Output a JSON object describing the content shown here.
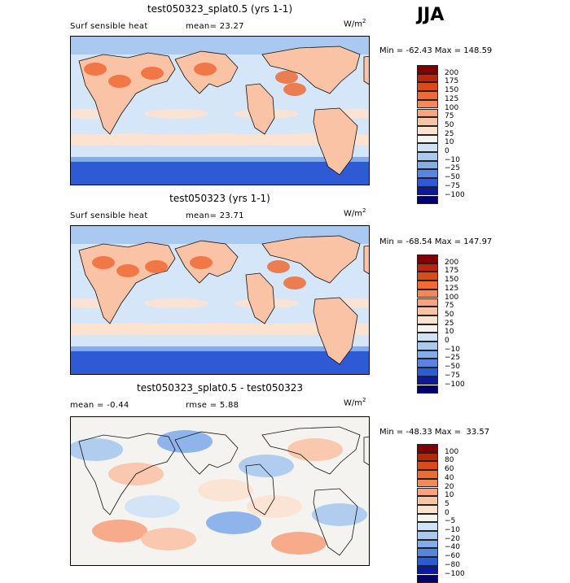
{
  "season": "JJA",
  "panels": [
    {
      "title": "test050323_splat0.5 (yrs 1-1)",
      "left_label": "Surf sensible heat",
      "mid_label": "mean=  23.27",
      "units": "W/m",
      "units_exp": "2",
      "minmax": "Min = -62.43 Max = 148.59",
      "levels": [
        "200",
        "175",
        "150",
        "125",
        "100",
        "75",
        "50",
        "25",
        "10",
        "0",
        "−10",
        "−25",
        "−50",
        "−75",
        "−100"
      ],
      "colors": [
        "#800000",
        "#b8270c",
        "#dc4a1c",
        "#ef6a35",
        "#f6875a",
        "#f7a37e",
        "#fbc3a6",
        "#fde2d0",
        "#f4f3ef",
        "#cfe2f6",
        "#a9c9f0",
        "#84acea",
        "#5a85df",
        "#2f5ad6",
        "#0b1a9a",
        "#000070"
      ]
    },
    {
      "title": "test050323 (yrs 1-1)",
      "left_label": "Surf sensible heat",
      "mid_label": "mean=  23.71",
      "units": "W/m",
      "units_exp": "2",
      "minmax": "Min = -68.54 Max = 147.97",
      "levels": [
        "200",
        "175",
        "150",
        "125",
        "100",
        "75",
        "50",
        "25",
        "10",
        "0",
        "−10",
        "−25",
        "−50",
        "−75",
        "−100"
      ],
      "colors": [
        "#800000",
        "#b8270c",
        "#dc4a1c",
        "#ef6a35",
        "#f6875a",
        "#f7a37e",
        "#fbc3a6",
        "#fde2d0",
        "#f4f3ef",
        "#cfe2f6",
        "#a9c9f0",
        "#84acea",
        "#5a85df",
        "#2f5ad6",
        "#0b1a9a",
        "#000070"
      ]
    },
    {
      "title": "test050323_splat0.5 - test050323",
      "left_label": "mean =  -0.44",
      "mid_label": "rmse =   5.88",
      "units": "W/m",
      "units_exp": "2",
      "minmax": "Min = -48.33 Max =  33.57",
      "levels": [
        "100",
        "80",
        "60",
        "40",
        "20",
        "10",
        "5",
        "0",
        "−5",
        "−10",
        "−20",
        "−40",
        "−60",
        "−80",
        "−100"
      ],
      "colors": [
        "#800000",
        "#b8270c",
        "#dc4a1c",
        "#ef6a35",
        "#f6875a",
        "#f7a37e",
        "#fbc3a6",
        "#fde2d0",
        "#f4f3ef",
        "#cfe2f6",
        "#a9c9f0",
        "#84acea",
        "#5a85df",
        "#2f5ad6",
        "#0b1a9a",
        "#000070"
      ]
    }
  ]
}
